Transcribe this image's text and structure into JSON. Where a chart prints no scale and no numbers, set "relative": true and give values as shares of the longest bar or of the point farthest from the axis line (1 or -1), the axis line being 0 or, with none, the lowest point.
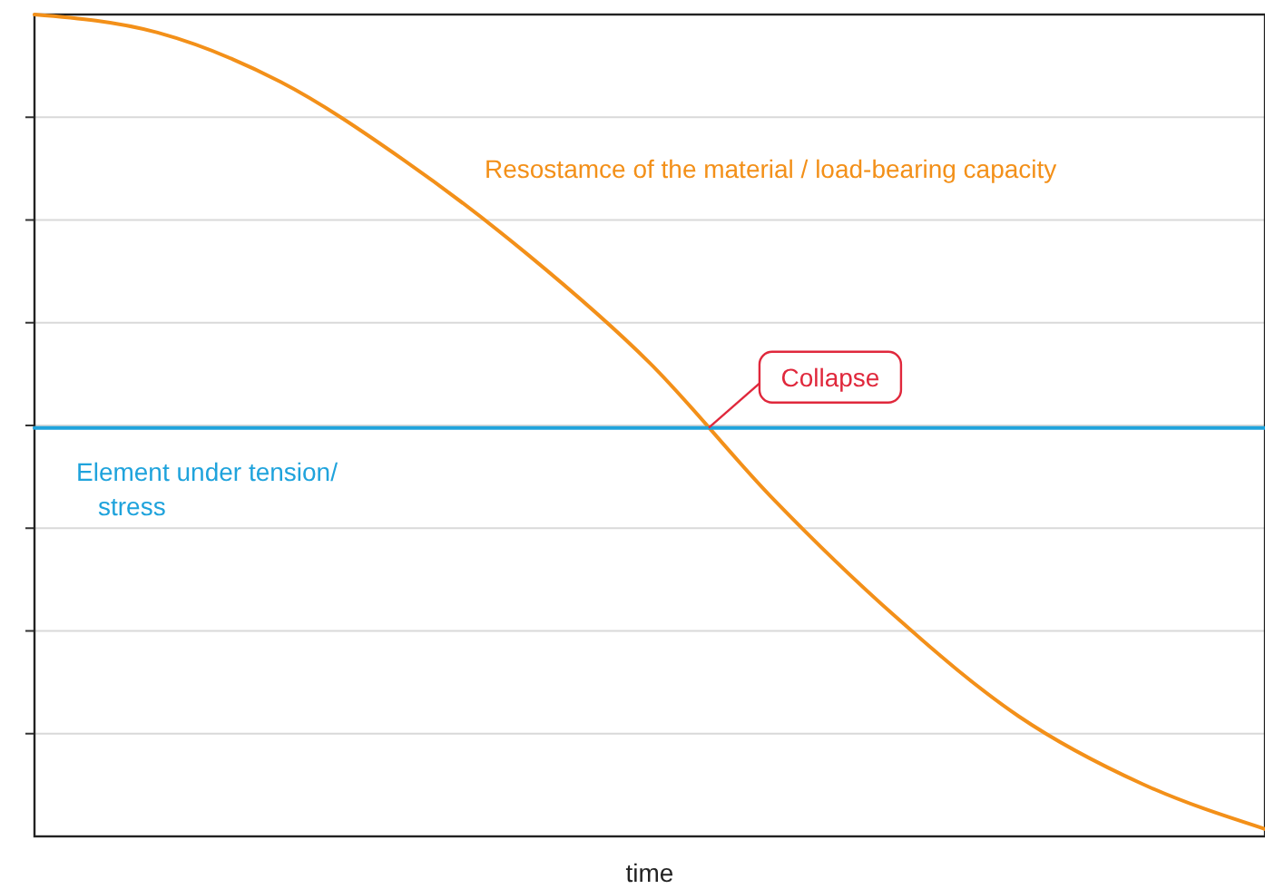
{
  "chart_data": {
    "type": "line",
    "relative": true,
    "xlabel": "time",
    "categories": [
      null,
      null,
      null,
      null,
      null,
      null,
      null,
      null,
      null,
      null,
      null
    ],
    "series": [
      {
        "name": "Resostamce of the material / load-bearing capacity",
        "color": "#f39019",
        "values": [
          1,
          0.978,
          0.918,
          0.823,
          0.709,
          0.576,
          0.411,
          0.267,
          0.146,
          0.064,
          0.009
        ]
      },
      {
        "name": "Element under tension/ stress",
        "color": "#1fa3dc",
        "values": [
          0.497,
          0.497,
          0.497,
          0.497,
          0.497,
          0.497,
          0.497,
          0.497,
          0.497,
          0.497,
          0.497
        ]
      }
    ],
    "annotations": [
      "Collapse"
    ],
    "grid": "y",
    "marker": "none",
    "line_style": "solid"
  }
}
